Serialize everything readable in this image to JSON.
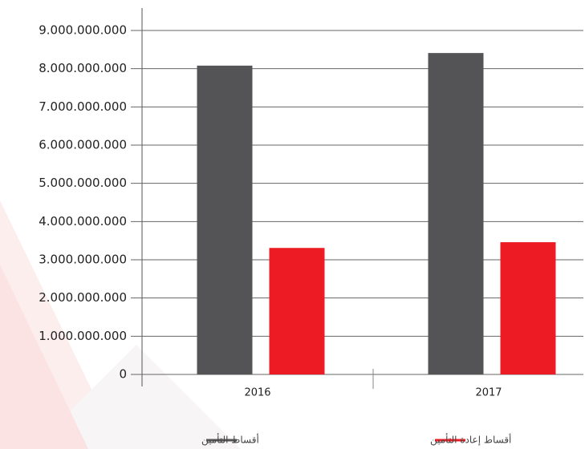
{
  "chart_data": {
    "type": "bar",
    "categories": [
      "2016",
      "2017"
    ],
    "series": [
      {
        "name": "أقساط التأمين",
        "color": "#545456",
        "values": [
          8080000000,
          8410000000
        ]
      },
      {
        "name": "أقساط إعادة التأمين",
        "color": "#ed1c24",
        "values": [
          3310000000,
          3460000000
        ]
      }
    ],
    "ylim": [
      0,
      9000000000
    ],
    "yticks": [
      0,
      {
        "value": 1000000000,
        "label": "1.000.000.000"
      },
      {
        "value": 2000000000,
        "label": "2.000.000.000"
      },
      {
        "value": 3000000000,
        "label": "3.000.000.000"
      },
      {
        "value": 4000000000,
        "label": "4.000.000.000"
      },
      {
        "value": 5000000000,
        "label": "5.000.000.000"
      },
      {
        "value": 6000000000,
        "label": "6.000.000.000"
      },
      {
        "value": 7000000000,
        "label": "7.000.000.000"
      },
      {
        "value": 8000000000,
        "label": "8.000.000.000"
      },
      {
        "value": 9000000000,
        "label": "9.000.000.000"
      }
    ],
    "grid": true
  }
}
